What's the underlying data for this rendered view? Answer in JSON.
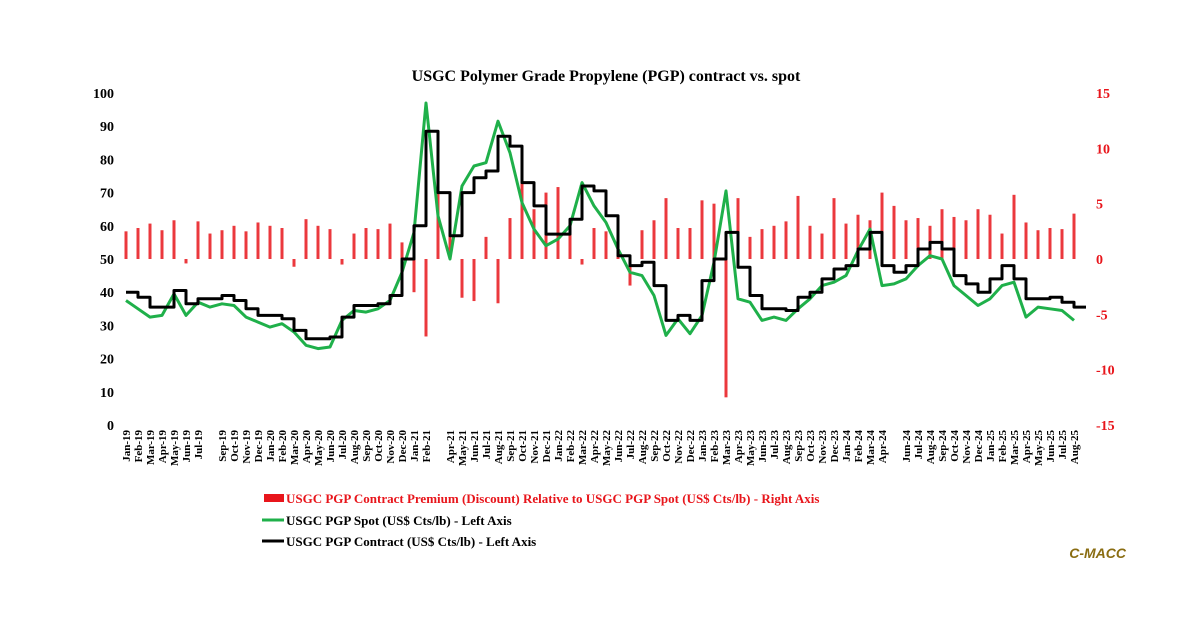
{
  "chart_data": {
    "type": "line",
    "title": "USGC Polymer Grade Propylene (PGP) contract vs. spot",
    "brand": "C-MACC",
    "y_left": {
      "min": 0,
      "max": 100,
      "ticks": [
        "0",
        "10",
        "20",
        "30",
        "40",
        "50",
        "60",
        "70",
        "80",
        "90",
        "100"
      ]
    },
    "y_right": {
      "min": -15,
      "max": 15,
      "ticks": [
        "-15",
        "-10",
        "-5",
        "0",
        "5",
        "10",
        "15"
      ]
    },
    "x_start": "Jan-19",
    "x_end": "Sep-25",
    "x_tick_labels": [
      "Jan-19",
      "Feb-19",
      "Mar-19",
      "Apr-19",
      "May-19",
      "Jun-19",
      "Jul-19",
      "Sep-19",
      "Oct-19",
      "Nov-19",
      "Dec-19",
      "Jan-20",
      "Feb-20",
      "Mar-20",
      "Apr-20",
      "May-20",
      "Jun-20",
      "Jul-20",
      "Aug-20",
      "Sep-20",
      "Oct-20",
      "Nov-20",
      "Dec-20",
      "Jan-21",
      "Feb-21",
      "Apr-21",
      "May-21",
      "Jun-21",
      "Jul-21",
      "Aug-21",
      "Sep-21",
      "Oct-21",
      "Nov-21",
      "Dec-21",
      "Jan-22",
      "Feb-22",
      "Mar-22",
      "Apr-22",
      "May-22",
      "Jun-22",
      "Jul-22",
      "Aug-22",
      "Sep-22",
      "Oct-22",
      "Nov-22",
      "Dec-22",
      "Jan-23",
      "Feb-23",
      "Mar-23",
      "Apr-23",
      "May-23",
      "Jun-23",
      "Jul-23",
      "Aug-23",
      "Sep-23",
      "Oct-23",
      "Nov-23",
      "Dec-23",
      "Jan-24",
      "Feb-24",
      "Mar-24",
      "Apr-24",
      "Jun-24",
      "Jul-24",
      "Aug-24",
      "Sep-24",
      "Oct-24",
      "Nov-24",
      "Dec-24",
      "Jan-25",
      "Feb-25",
      "Mar-25",
      "Apr-25",
      "May-25",
      "Jun-25",
      "Jul-25",
      "Aug-25"
    ],
    "series": [
      {
        "name": "USGC PGP Contract Premium (Discount) Relative to USGC PGP Spot (US$ Cts/lb) - Right Axis",
        "type": "bar",
        "axis": "right",
        "color": "#e8151b",
        "points": [
          [
            "Jan-19",
            2.5
          ],
          [
            "Feb-19",
            2.8
          ],
          [
            "Mar-19",
            3.2
          ],
          [
            "Apr-19",
            2.6
          ],
          [
            "May-19",
            3.5
          ],
          [
            "Jun-19",
            -0.4
          ],
          [
            "Jul-19",
            3.4
          ],
          [
            "Aug-19",
            2.3
          ],
          [
            "Sep-19",
            2.6
          ],
          [
            "Oct-19",
            3.0
          ],
          [
            "Nov-19",
            2.5
          ],
          [
            "Dec-19",
            3.3
          ],
          [
            "Jan-20",
            3.0
          ],
          [
            "Feb-20",
            2.8
          ],
          [
            "Mar-20",
            -0.7
          ],
          [
            "Apr-20",
            3.6
          ],
          [
            "May-20",
            3.0
          ],
          [
            "Jun-20",
            2.7
          ],
          [
            "Jul-20",
            -0.5
          ],
          [
            "Aug-20",
            2.3
          ],
          [
            "Sep-20",
            2.8
          ],
          [
            "Oct-20",
            2.7
          ],
          [
            "Nov-20",
            3.2
          ],
          [
            "Dec-20",
            1.5
          ],
          [
            "Jan-21",
            -3.0
          ],
          [
            "Feb-21",
            -7.0
          ],
          [
            "Mar-21",
            10.5
          ],
          [
            "Apr-21",
            4.5
          ],
          [
            "May-21",
            -3.5
          ],
          [
            "Jun-21",
            -3.8
          ],
          [
            "Jul-21",
            2.0
          ],
          [
            "Aug-21",
            -4.0
          ],
          [
            "Sep-21",
            3.7
          ],
          [
            "Oct-21",
            9.0
          ],
          [
            "Nov-21",
            4.5
          ],
          [
            "Dec-21",
            6.0
          ],
          [
            "Jan-22",
            6.5
          ],
          [
            "Feb-22",
            3.0
          ],
          [
            "Mar-22",
            -0.5
          ],
          [
            "Apr-22",
            2.8
          ],
          [
            "May-22",
            2.5
          ],
          [
            "Jun-22",
            2.0
          ],
          [
            "Jul-22",
            -2.4
          ],
          [
            "Aug-22",
            2.6
          ],
          [
            "Sep-22",
            3.5
          ],
          [
            "Oct-22",
            5.5
          ],
          [
            "Nov-22",
            2.8
          ],
          [
            "Dec-22",
            2.8
          ],
          [
            "Jan-23",
            5.3
          ],
          [
            "Feb-23",
            5.0
          ],
          [
            "Mar-23",
            -12.5
          ],
          [
            "Apr-23",
            5.5
          ],
          [
            "May-23",
            2.0
          ],
          [
            "Jun-23",
            2.7
          ],
          [
            "Jul-23",
            3.0
          ],
          [
            "Aug-23",
            3.4
          ],
          [
            "Sep-23",
            5.7
          ],
          [
            "Oct-23",
            3.0
          ],
          [
            "Nov-23",
            2.3
          ],
          [
            "Dec-23",
            5.5
          ],
          [
            "Jan-24",
            3.2
          ],
          [
            "Feb-24",
            4.0
          ],
          [
            "Mar-24",
            3.5
          ],
          [
            "Apr-24",
            6.0
          ],
          [
            "May-24",
            4.8
          ],
          [
            "Jun-24",
            3.5
          ],
          [
            "Jul-24",
            3.7
          ],
          [
            "Aug-24",
            3.0
          ],
          [
            "Sep-24",
            4.5
          ],
          [
            "Oct-24",
            3.8
          ],
          [
            "Nov-24",
            3.5
          ],
          [
            "Dec-24",
            4.5
          ],
          [
            "Jan-25",
            4.0
          ],
          [
            "Feb-25",
            2.3
          ],
          [
            "Mar-25",
            5.8
          ],
          [
            "Apr-25",
            3.3
          ],
          [
            "May-25",
            2.6
          ],
          [
            "Jun-25",
            2.8
          ],
          [
            "Jul-25",
            2.7
          ],
          [
            "Aug-25",
            4.1
          ]
        ]
      },
      {
        "name": "USGC PGP Spot (US$ Cts/lb) - Left Axis",
        "type": "line",
        "axis": "left",
        "color": "#1fb04a",
        "points": [
          [
            "Jan-19",
            37.5
          ],
          [
            "Feb-19",
            35.0
          ],
          [
            "Mar-19",
            32.5
          ],
          [
            "Apr-19",
            33.0
          ],
          [
            "May-19",
            39.5
          ],
          [
            "Jun-19",
            33.0
          ],
          [
            "Jul-19",
            37.0
          ],
          [
            "Aug-19",
            35.5
          ],
          [
            "Sep-19",
            36.5
          ],
          [
            "Oct-19",
            36.0
          ],
          [
            "Nov-19",
            32.5
          ],
          [
            "Dec-19",
            31.0
          ],
          [
            "Jan-20",
            29.5
          ],
          [
            "Feb-20",
            30.5
          ],
          [
            "Mar-20",
            28.0
          ],
          [
            "Apr-20",
            24.0
          ],
          [
            "May-20",
            23.0
          ],
          [
            "Jun-20",
            23.5
          ],
          [
            "Jul-20",
            31.5
          ],
          [
            "Aug-20",
            34.5
          ],
          [
            "Sep-20",
            34.0
          ],
          [
            "Oct-20",
            35.0
          ],
          [
            "Nov-20",
            37.5
          ],
          [
            "Dec-20",
            46.0
          ],
          [
            "Jan-21",
            58.0
          ],
          [
            "Feb-21",
            97.0
          ],
          [
            "Mar-21",
            63.0
          ],
          [
            "Apr-21",
            50.0
          ],
          [
            "May-21",
            72.0
          ],
          [
            "Jun-21",
            78.0
          ],
          [
            "Jul-21",
            79.0
          ],
          [
            "Aug-21",
            91.5
          ],
          [
            "Sep-21",
            82.0
          ],
          [
            "Oct-21",
            67.0
          ],
          [
            "Nov-21",
            59.0
          ],
          [
            "Dec-21",
            54.0
          ],
          [
            "Jan-22",
            56.0
          ],
          [
            "Feb-22",
            60.0
          ],
          [
            "Mar-22",
            73.0
          ],
          [
            "Apr-22",
            66.0
          ],
          [
            "May-22",
            61.0
          ],
          [
            "Jun-22",
            53.0
          ],
          [
            "Jul-22",
            46.0
          ],
          [
            "Aug-22",
            45.0
          ],
          [
            "Sep-22",
            39.0
          ],
          [
            "Oct-22",
            27.0
          ],
          [
            "Nov-22",
            32.0
          ],
          [
            "Dec-22",
            27.5
          ],
          [
            "Jan-23",
            33.0
          ],
          [
            "Feb-23",
            49.0
          ],
          [
            "Mar-23",
            70.5
          ],
          [
            "Apr-23",
            38.0
          ],
          [
            "May-23",
            37.0
          ],
          [
            "Jun-23",
            31.5
          ],
          [
            "Jul-23",
            32.5
          ],
          [
            "Aug-23",
            31.5
          ],
          [
            "Sep-23",
            35.0
          ],
          [
            "Oct-23",
            38.0
          ],
          [
            "Nov-23",
            42.0
          ],
          [
            "Dec-23",
            43.0
          ],
          [
            "Jan-24",
            45.0
          ],
          [
            "Feb-24",
            52.5
          ],
          [
            "Mar-24",
            59.0
          ],
          [
            "Apr-24",
            42.0
          ],
          [
            "May-24",
            42.5
          ],
          [
            "Jun-24",
            44.0
          ],
          [
            "Jul-24",
            48.0
          ],
          [
            "Aug-24",
            51.0
          ],
          [
            "Sep-24",
            50.0
          ],
          [
            "Oct-24",
            42.0
          ],
          [
            "Nov-24",
            39.0
          ],
          [
            "Dec-24",
            36.0
          ],
          [
            "Jan-25",
            38.0
          ],
          [
            "Feb-25",
            42.0
          ],
          [
            "Mar-25",
            43.0
          ],
          [
            "Apr-25",
            32.5
          ],
          [
            "May-25",
            35.5
          ],
          [
            "Jun-25",
            35.0
          ],
          [
            "Jul-25",
            34.5
          ],
          [
            "Aug-25",
            31.5
          ]
        ]
      },
      {
        "name": "USGC PGP Contract (US$ Cts/lb) - Left Axis",
        "type": "line",
        "step": true,
        "axis": "left",
        "color": "#000000",
        "points": [
          [
            "Jan-19",
            40.0
          ],
          [
            "Feb-19",
            38.5
          ],
          [
            "Mar-19",
            35.5
          ],
          [
            "Apr-19",
            35.5
          ],
          [
            "May-19",
            40.5
          ],
          [
            "Jun-19",
            36.5
          ],
          [
            "Jul-19",
            38.0
          ],
          [
            "Aug-19",
            38.0
          ],
          [
            "Sep-19",
            39.0
          ],
          [
            "Oct-19",
            37.5
          ],
          [
            "Nov-19",
            35.0
          ],
          [
            "Dec-19",
            33.0
          ],
          [
            "Jan-20",
            33.0
          ],
          [
            "Feb-20",
            32.0
          ],
          [
            "Mar-20",
            28.5
          ],
          [
            "Apr-20",
            26.0
          ],
          [
            "May-20",
            26.0
          ],
          [
            "Jun-20",
            26.5
          ],
          [
            "Jul-20",
            32.5
          ],
          [
            "Aug-20",
            36.0
          ],
          [
            "Sep-20",
            36.0
          ],
          [
            "Oct-20",
            36.5
          ],
          [
            "Nov-20",
            39.0
          ],
          [
            "Dec-20",
            50.0
          ],
          [
            "Jan-21",
            60.0
          ],
          [
            "Feb-21",
            88.5
          ],
          [
            "Mar-21",
            70.0
          ],
          [
            "Apr-21",
            57.0
          ],
          [
            "May-21",
            70.0
          ],
          [
            "Jun-21",
            74.5
          ],
          [
            "Jul-21",
            76.5
          ],
          [
            "Aug-21",
            87.0
          ],
          [
            "Sep-21",
            84.0
          ],
          [
            "Oct-21",
            73.0
          ],
          [
            "Nov-21",
            66.0
          ],
          [
            "Dec-21",
            57.5
          ],
          [
            "Jan-22",
            57.5
          ],
          [
            "Feb-22",
            62.0
          ],
          [
            "Mar-22",
            72.0
          ],
          [
            "Apr-22",
            70.5
          ],
          [
            "May-22",
            63.0
          ],
          [
            "Jun-22",
            51.0
          ],
          [
            "Jul-22",
            48.0
          ],
          [
            "Aug-22",
            49.0
          ],
          [
            "Sep-22",
            42.0
          ],
          [
            "Oct-22",
            31.5
          ],
          [
            "Nov-22",
            33.0
          ],
          [
            "Dec-22",
            31.5
          ],
          [
            "Jan-23",
            43.5
          ],
          [
            "Feb-23",
            50.0
          ],
          [
            "Mar-23",
            58.0
          ],
          [
            "Apr-23",
            47.5
          ],
          [
            "May-23",
            39.0
          ],
          [
            "Jun-23",
            35.0
          ],
          [
            "Jul-23",
            35.0
          ],
          [
            "Aug-23",
            34.5
          ],
          [
            "Sep-23",
            38.5
          ],
          [
            "Oct-23",
            40.0
          ],
          [
            "Nov-23",
            44.0
          ],
          [
            "Dec-23",
            47.0
          ],
          [
            "Jan-24",
            48.0
          ],
          [
            "Feb-24",
            53.0
          ],
          [
            "Mar-24",
            58.0
          ],
          [
            "Apr-24",
            48.0
          ],
          [
            "May-24",
            46.0
          ],
          [
            "Jun-24",
            48.0
          ],
          [
            "Jul-24",
            53.0
          ],
          [
            "Aug-24",
            55.0
          ],
          [
            "Sep-24",
            53.0
          ],
          [
            "Oct-24",
            45.0
          ],
          [
            "Nov-24",
            42.5
          ],
          [
            "Dec-24",
            40.0
          ],
          [
            "Jan-25",
            44.0
          ],
          [
            "Feb-25",
            48.0
          ],
          [
            "Mar-25",
            44.0
          ],
          [
            "Apr-25",
            38.0
          ],
          [
            "May-25",
            38.0
          ],
          [
            "Jun-25",
            38.5
          ],
          [
            "Jul-25",
            37.0
          ],
          [
            "Aug-25",
            35.5
          ]
        ]
      }
    ]
  }
}
